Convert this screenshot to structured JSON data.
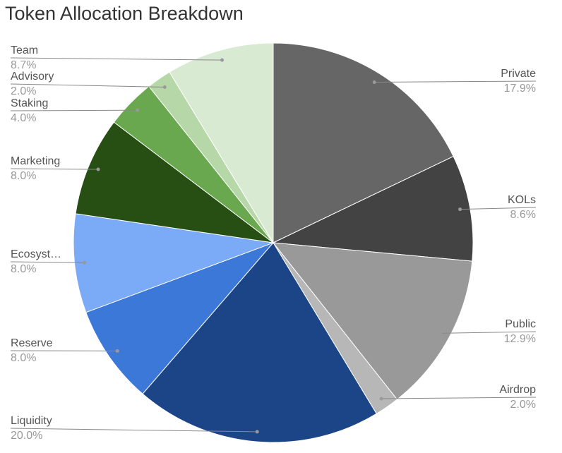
{
  "chart_data": {
    "type": "pie",
    "title": "Token Allocation Breakdown",
    "categories": [
      "Private",
      "KOLs",
      "Public",
      "Airdrop",
      "Liquidity",
      "Reserve",
      "Ecosyst…",
      "Marketing",
      "Staking",
      "Advisory",
      "Team"
    ],
    "values": [
      17.9,
      8.6,
      12.9,
      2.0,
      20.0,
      8.0,
      8.0,
      8.0,
      4.0,
      2.0,
      8.7
    ],
    "value_labels": [
      "17.9%",
      "8.6%",
      "12.9%",
      "2.0%",
      "20.0%",
      "8.0%",
      "8.0%",
      "8.0%",
      "4.0%",
      "2.0%",
      "8.7%"
    ],
    "colors": [
      "#666666",
      "#434343",
      "#999999",
      "#b7b7b7",
      "#1c4587",
      "#3c78d8",
      "#7baaf7",
      "#274e13",
      "#6aa84f",
      "#b6d7a8",
      "#d9ead3"
    ]
  }
}
